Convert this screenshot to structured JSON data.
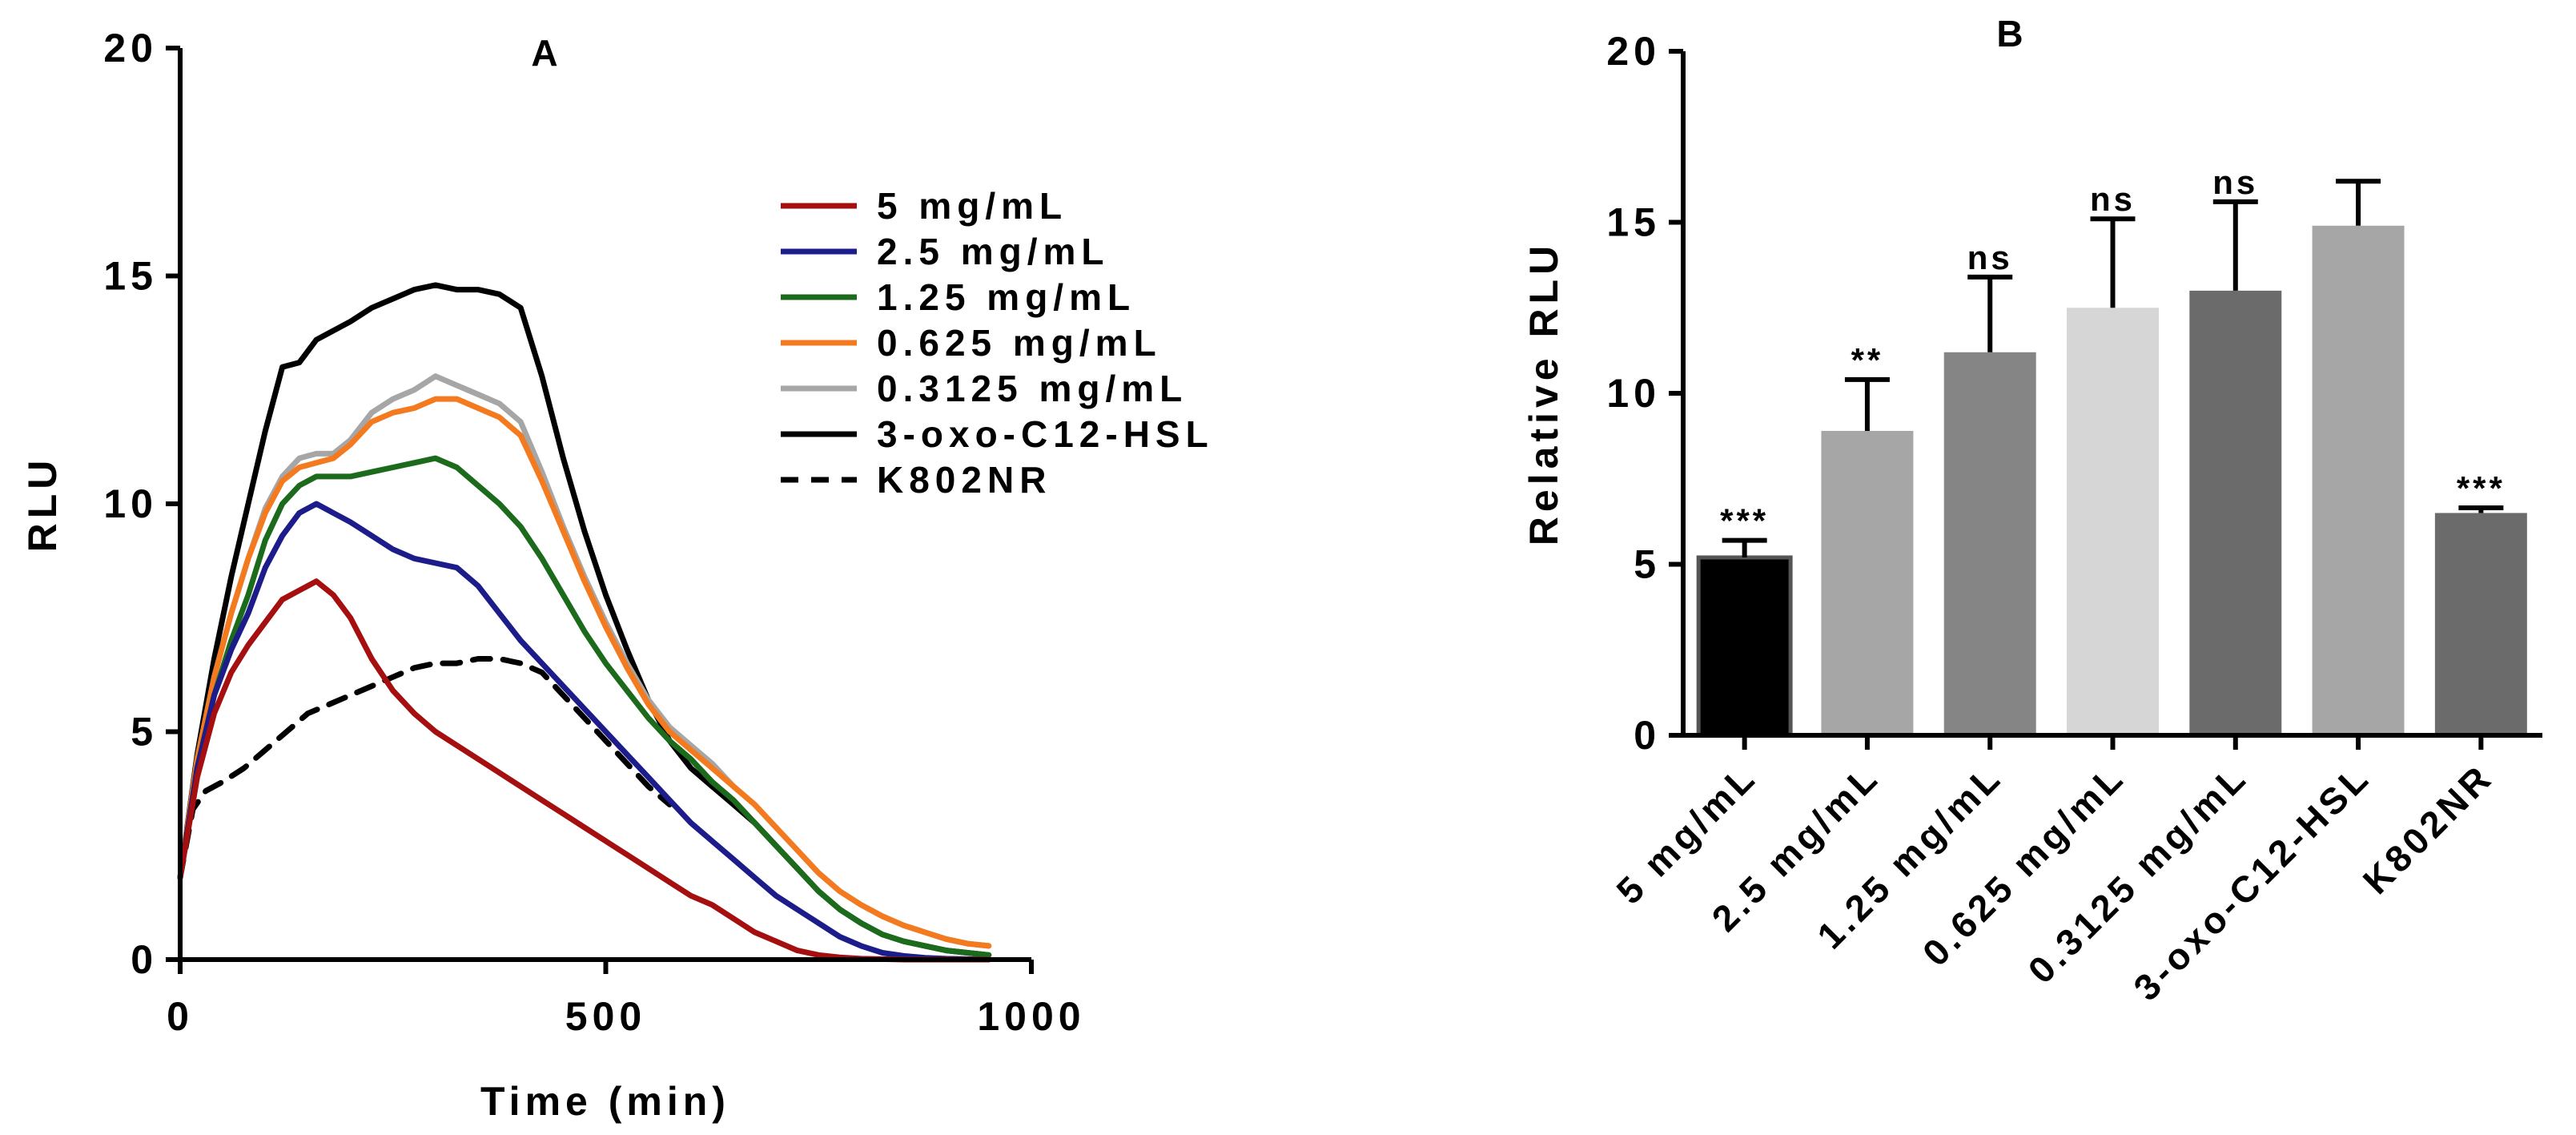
{
  "chart_data": [
    {
      "panel_label": "A",
      "type": "line",
      "xlabel": "Time (min)",
      "ylabel": "RLU",
      "xlim": [
        0,
        1000
      ],
      "ylim": [
        0,
        20
      ],
      "xticks": [
        0,
        500,
        1000
      ],
      "yticks": [
        0,
        5,
        10,
        15,
        20
      ],
      "xtick_labels": [
        "0",
        "500",
        "1000"
      ],
      "ytick_labels": [
        "0",
        "5",
        "10",
        "15",
        "20"
      ],
      "grid": false,
      "legend_position": "top-right",
      "series": [
        {
          "name": "5 mg/mL",
          "color": "#a50f0f",
          "dash": false,
          "x": [
            0,
            20,
            40,
            60,
            80,
            100,
            120,
            140,
            160,
            180,
            200,
            225,
            250,
            275,
            300,
            325,
            350,
            375,
            400,
            425,
            450,
            475,
            500,
            525,
            550,
            575,
            600,
            625,
            650,
            675,
            700,
            725,
            750,
            775,
            800,
            825,
            850,
            875,
            900,
            925,
            950
          ],
          "y": [
            1.8,
            4.0,
            5.4,
            6.3,
            6.9,
            7.4,
            7.9,
            8.1,
            8.3,
            8.0,
            7.5,
            6.6,
            5.9,
            5.4,
            5.0,
            4.7,
            4.4,
            4.1,
            3.8,
            3.5,
            3.2,
            2.9,
            2.6,
            2.3,
            2.0,
            1.7,
            1.4,
            1.2,
            0.9,
            0.6,
            0.4,
            0.2,
            0.1,
            0.05,
            0.02,
            0.01,
            0,
            0,
            0,
            0,
            0
          ]
        },
        {
          "name": "2.5 mg/mL",
          "color": "#1c1c8a",
          "dash": false,
          "x": [
            0,
            20,
            40,
            60,
            80,
            100,
            120,
            140,
            160,
            180,
            200,
            225,
            250,
            275,
            300,
            325,
            350,
            375,
            400,
            425,
            450,
            475,
            500,
            525,
            550,
            575,
            600,
            625,
            650,
            675,
            700,
            725,
            750,
            775,
            800,
            825,
            850,
            875,
            900,
            925,
            950
          ],
          "y": [
            1.8,
            4.2,
            5.8,
            6.8,
            7.6,
            8.6,
            9.3,
            9.8,
            10.0,
            9.8,
            9.6,
            9.3,
            9.0,
            8.8,
            8.7,
            8.6,
            8.2,
            7.6,
            7.0,
            6.5,
            6.0,
            5.5,
            5.0,
            4.5,
            4.0,
            3.5,
            3.0,
            2.6,
            2.2,
            1.8,
            1.4,
            1.1,
            0.8,
            0.5,
            0.3,
            0.15,
            0.08,
            0.04,
            0.02,
            0.01,
            0
          ]
        },
        {
          "name": "1.25 mg/mL",
          "color": "#1c6b1c",
          "dash": false,
          "x": [
            0,
            20,
            40,
            60,
            80,
            100,
            120,
            140,
            160,
            180,
            200,
            225,
            250,
            275,
            300,
            325,
            350,
            375,
            400,
            425,
            450,
            475,
            500,
            525,
            550,
            575,
            600,
            625,
            650,
            675,
            700,
            725,
            750,
            775,
            800,
            825,
            850,
            875,
            900,
            925,
            950
          ],
          "y": [
            1.8,
            4.2,
            5.8,
            7.0,
            8.0,
            9.2,
            10.0,
            10.4,
            10.6,
            10.6,
            10.6,
            10.7,
            10.8,
            10.9,
            11.0,
            10.8,
            10.4,
            10.0,
            9.5,
            8.8,
            8.0,
            7.2,
            6.5,
            5.9,
            5.3,
            4.8,
            4.4,
            3.9,
            3.5,
            3.0,
            2.5,
            2.0,
            1.5,
            1.1,
            0.8,
            0.55,
            0.4,
            0.3,
            0.2,
            0.15,
            0.1
          ]
        },
        {
          "name": "0.625 mg/mL",
          "color": "#f47a20",
          "dash": false,
          "x": [
            0,
            20,
            40,
            60,
            80,
            100,
            120,
            140,
            160,
            180,
            200,
            225,
            250,
            275,
            300,
            325,
            350,
            375,
            400,
            425,
            450,
            475,
            500,
            525,
            550,
            575,
            600,
            625,
            650,
            675,
            700,
            725,
            750,
            775,
            800,
            825,
            850,
            875,
            900,
            925,
            950
          ],
          "y": [
            1.8,
            4.4,
            6.2,
            7.6,
            8.8,
            9.8,
            10.5,
            10.8,
            10.9,
            11.0,
            11.3,
            11.8,
            12.0,
            12.1,
            12.3,
            12.3,
            12.1,
            11.9,
            11.5,
            10.5,
            9.4,
            8.3,
            7.3,
            6.4,
            5.6,
            5.0,
            4.6,
            4.2,
            3.8,
            3.4,
            2.9,
            2.4,
            1.9,
            1.5,
            1.2,
            0.95,
            0.75,
            0.6,
            0.45,
            0.35,
            0.3
          ]
        },
        {
          "name": "0.3125 mg/mL",
          "color": "#a6a6a6",
          "dash": false,
          "x": [
            0,
            20,
            40,
            60,
            80,
            100,
            120,
            140,
            160,
            180,
            200,
            225,
            250,
            275,
            300,
            325,
            350,
            375,
            400,
            425,
            450,
            475,
            500,
            525,
            550,
            575,
            600,
            625,
            650,
            675,
            700,
            725,
            750,
            775,
            800,
            825,
            850,
            875,
            900,
            925,
            950
          ],
          "y": [
            1.8,
            4.4,
            6.2,
            7.6,
            8.8,
            9.9,
            10.6,
            11.0,
            11.1,
            11.1,
            11.4,
            12.0,
            12.3,
            12.5,
            12.8,
            12.6,
            12.4,
            12.2,
            11.8,
            10.7,
            9.5,
            8.4,
            7.4,
            6.5,
            5.7,
            5.1,
            4.7,
            4.3,
            3.8,
            3.4,
            2.9,
            2.4,
            1.9,
            1.5,
            1.2,
            0.95,
            0.75,
            0.6,
            0.45,
            0.35,
            0.3
          ]
        },
        {
          "name": "3-oxo-C12-HSL",
          "color": "#000000",
          "dash": false,
          "x": [
            0,
            20,
            40,
            60,
            80,
            100,
            120,
            140,
            160,
            180,
            200,
            225,
            250,
            275,
            300,
            325,
            350,
            375,
            400,
            425,
            450,
            475,
            500,
            525,
            550,
            575,
            600,
            625,
            650,
            675,
            700,
            725,
            750,
            775,
            800,
            825,
            850,
            875,
            900,
            925,
            950
          ],
          "y": [
            1.8,
            4.5,
            6.6,
            8.4,
            10.0,
            11.6,
            13.0,
            13.1,
            13.6,
            13.8,
            14.0,
            14.3,
            14.5,
            14.7,
            14.8,
            14.7,
            14.7,
            14.6,
            14.3,
            12.8,
            11.0,
            9.4,
            8.0,
            6.8,
            5.7,
            4.8,
            4.2,
            3.8,
            3.4,
            3.0,
            2.5,
            2.0,
            1.5,
            1.1,
            0.8,
            0.55,
            0.4,
            0.3,
            0.2,
            0.15,
            0.1
          ]
        },
        {
          "name": "K802NR",
          "color": "#000000",
          "dash": true,
          "x": [
            0,
            15,
            30,
            50,
            75,
            100,
            125,
            150,
            175,
            200,
            225,
            250,
            275,
            300,
            325,
            350,
            375,
            400,
            425,
            450,
            475,
            500,
            525,
            550,
            575
          ],
          "y": [
            1.8,
            3.3,
            3.7,
            3.9,
            4.2,
            4.6,
            5.0,
            5.4,
            5.6,
            5.8,
            6.0,
            6.2,
            6.4,
            6.5,
            6.5,
            6.6,
            6.6,
            6.5,
            6.3,
            5.8,
            5.3,
            4.8,
            4.3,
            3.8,
            3.4
          ]
        }
      ]
    },
    {
      "panel_label": "B",
      "type": "bar",
      "ylabel": "Relative RLU",
      "xlabel": "",
      "ylim": [
        0,
        20
      ],
      "yticks": [
        0,
        5,
        10,
        15,
        20
      ],
      "ytick_labels": [
        "0",
        "5",
        "10",
        "15",
        "20"
      ],
      "grid": false,
      "categories": [
        "5 mg/mL",
        "2.5 mg/mL",
        "1.25 mg/mL",
        "0.625 mg/mL",
        "0.3125 mg/mL",
        "3-oxo-C12-HSL",
        "K802NR"
      ],
      "values": [
        5.2,
        8.9,
        11.2,
        12.5,
        13.0,
        14.9,
        6.5
      ],
      "errors": [
        0.5,
        1.5,
        2.2,
        2.6,
        2.6,
        1.3,
        0.15
      ],
      "colors": [
        "#000000",
        "#a6a6a6",
        "#858585",
        "#d6d6d6",
        "#6b6b6b",
        "#a6a6a6",
        "#6b6b6b"
      ],
      "significance": [
        "***",
        "**",
        "ns",
        "ns",
        "ns",
        "",
        "***"
      ]
    }
  ]
}
